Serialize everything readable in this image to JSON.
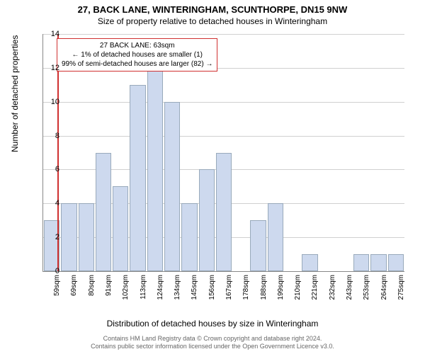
{
  "titles": {
    "main": "27, BACK LANE, WINTERINGHAM, SCUNTHORPE, DN15 9NW",
    "sub": "Size of property relative to detached houses in Winteringham"
  },
  "chart": {
    "type": "histogram",
    "ylabel": "Number of detached properties",
    "xlabel": "Distribution of detached houses by size in Winteringham",
    "ylim": [
      0,
      14
    ],
    "ytick_step": 2,
    "yticks": [
      0,
      2,
      4,
      6,
      8,
      10,
      12,
      14
    ],
    "bar_color": "#cdd9ee",
    "bar_border_color": "#99aabb",
    "grid_color": "#d0d0d0",
    "background_color": "#ffffff",
    "marker_color": "#d03030",
    "marker_x_value": 63,
    "x_start": 54,
    "x_step": 10.8,
    "categories": [
      "59sqm",
      "69sqm",
      "80sqm",
      "91sqm",
      "102sqm",
      "113sqm",
      "124sqm",
      "134sqm",
      "145sqm",
      "156sqm",
      "167sqm",
      "178sqm",
      "188sqm",
      "199sqm",
      "210sqm",
      "221sqm",
      "232sqm",
      "243sqm",
      "253sqm",
      "264sqm",
      "275sqm"
    ],
    "values": [
      3,
      4,
      4,
      7,
      5,
      11,
      12,
      10,
      4,
      6,
      7,
      0,
      3,
      4,
      0,
      1,
      0,
      0,
      1,
      1,
      1
    ],
    "title_fontsize": 13,
    "label_fontsize": 12,
    "tick_fontsize": 10
  },
  "annotation": {
    "line1": "27 BACK LANE: 63sqm",
    "line2": "← 1% of detached houses are smaller (1)",
    "line3": "99% of semi-detached houses are larger (82) →"
  },
  "footer": {
    "line1": "Contains HM Land Registry data © Crown copyright and database right 2024.",
    "line2": "Contains public sector information licensed under the Open Government Licence v3.0."
  }
}
